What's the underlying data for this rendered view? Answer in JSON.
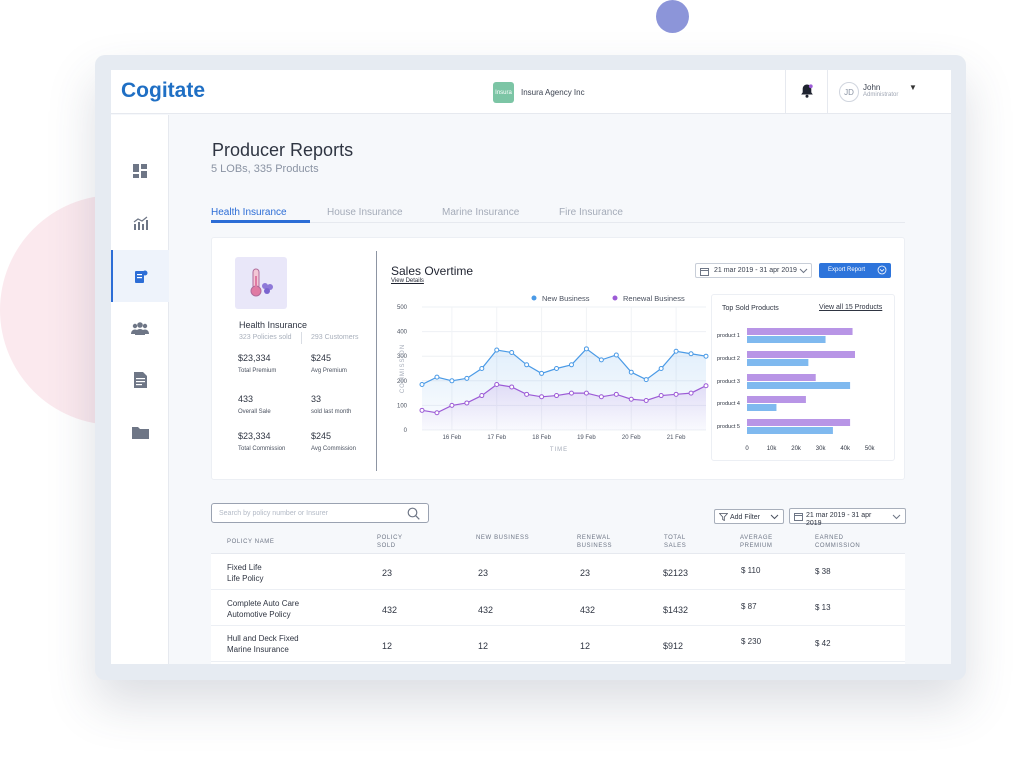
{
  "header": {
    "logo": "Cogitate",
    "agency_badge": "Insura",
    "agency_name": "Insura Agency Inc",
    "user_initials": "JD",
    "user_name": "John",
    "user_role": "Administrator"
  },
  "page": {
    "title": "Producer Reports",
    "subtitle": "5 LOBs, 335 Products"
  },
  "tabs": [
    "Health Insurance",
    "House Insurance",
    "Marine Insurance",
    "Fire Insurance"
  ],
  "lob": {
    "name": "Health Insurance",
    "policies_sold": "323 Policies sold",
    "customers": "293 Customers",
    "stats": [
      {
        "value": "$23,334",
        "label": "Total Premium"
      },
      {
        "value": "$245",
        "label": "Avg Premium"
      },
      {
        "value": "433",
        "label": "Overall Sale"
      },
      {
        "value": "33",
        "label": "sold last month"
      },
      {
        "value": "$23,334",
        "label": "Total Commission"
      },
      {
        "value": "$245",
        "label": "Avg Commission"
      }
    ]
  },
  "sales": {
    "title": "Sales Overtime",
    "view_details": "View Details",
    "date_range": "21 mar 2019 - 31 apr 2019",
    "export_label": "Export Report"
  },
  "top_sold": {
    "title": "Top Sold Products",
    "link": "View all 15 Products"
  },
  "table": {
    "search_placeholder": "Search by policy number or Insurer",
    "filter_label": "Add Filter",
    "date_range": "21 mar 2019 - 31 apr 2019",
    "headers": [
      "POLICY NAME",
      "POLICY SOLD",
      "NEW BUSINESS",
      "RENEWAL BUSINESS",
      "TOTAL SALES",
      "AVERAGE PREMIUM",
      "EARNED COMMISSION"
    ],
    "rows": [
      {
        "name1": "Fixed Life",
        "name2": "Life Policy",
        "sold": "23",
        "new": "23",
        "renewal": "23",
        "total": "$2123",
        "avg": "$ 110",
        "comm": "$ 38"
      },
      {
        "name1": "Complete Auto Care",
        "name2": "Automotive Policy",
        "sold": "432",
        "new": "432",
        "renewal": "432",
        "total": "$1432",
        "avg": "$ 87",
        "comm": "$ 13"
      },
      {
        "name1": "Hull and Deck Fixed",
        "name2": "Marine Insurance",
        "sold": "12",
        "new": "12",
        "renewal": "12",
        "total": "$912",
        "avg": "$ 230",
        "comm": "$ 42"
      }
    ]
  },
  "colors": {
    "accent": "#2c6dd6",
    "new_business": "#4a9ae6",
    "renewal_business": "#9c5bd6"
  },
  "chart_data": [
    {
      "type": "line",
      "title": "Sales Overtime",
      "xlabel": "TIME",
      "ylabel": "COMMISSION",
      "ylim": [
        0,
        500
      ],
      "yticks": [
        0,
        100,
        200,
        300,
        400,
        500
      ],
      "xtick_labels": [
        "16 Feb",
        "17 Feb",
        "18 Feb",
        "19 Feb",
        "20 Feb",
        "21 Feb"
      ],
      "xtick_positions": [
        2,
        5,
        8,
        11,
        14,
        17
      ],
      "x": [
        0,
        1,
        2,
        3,
        4,
        5,
        6,
        7,
        8,
        9,
        10,
        11,
        12,
        13,
        14,
        15,
        16,
        17,
        18,
        19
      ],
      "legend": "top",
      "series": [
        {
          "name": "New Business",
          "values": [
            185,
            215,
            200,
            210,
            250,
            325,
            315,
            265,
            230,
            250,
            265,
            330,
            285,
            305,
            235,
            205,
            250,
            320,
            310,
            300
          ]
        },
        {
          "name": "Renewal Business",
          "values": [
            80,
            70,
            100,
            110,
            140,
            185,
            175,
            145,
            135,
            140,
            150,
            150,
            135,
            145,
            125,
            120,
            140,
            145,
            150,
            180
          ]
        }
      ]
    },
    {
      "type": "bar",
      "orientation": "horizontal",
      "title": "Top Sold Products",
      "categories": [
        "product 1",
        "product 2",
        "product 3",
        "product 4",
        "product 5"
      ],
      "xlim": [
        0,
        55000
      ],
      "xticks": [
        "0",
        "10k",
        "20k",
        "30k",
        "40k",
        "50k"
      ],
      "xtick_values": [
        0,
        10000,
        20000,
        30000,
        40000,
        50000
      ],
      "series": [
        {
          "name": "Renewal Business",
          "values": [
            43000,
            44000,
            28000,
            24000,
            42000
          ]
        },
        {
          "name": "New Business",
          "values": [
            32000,
            25000,
            42000,
            12000,
            35000
          ]
        }
      ]
    }
  ]
}
